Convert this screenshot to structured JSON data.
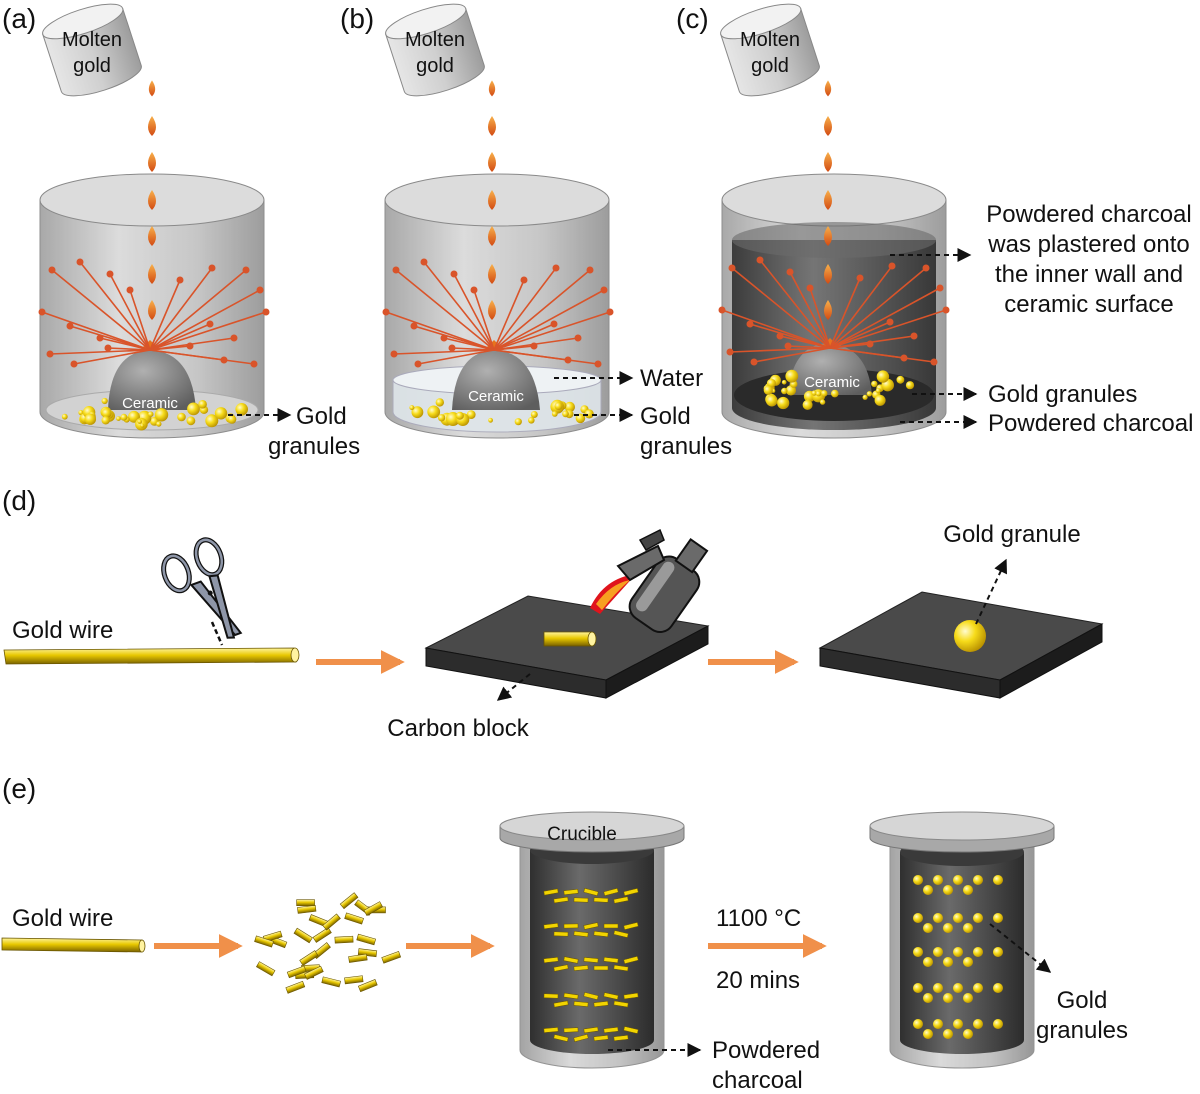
{
  "panels": {
    "a": {
      "letter": "(a)",
      "cup_label_1": "Molten",
      "cup_label_2": "gold",
      "ceramic": "Ceramic",
      "granules_1": "Gold",
      "granules_2": "granules"
    },
    "b": {
      "letter": "(b)",
      "cup_label_1": "Molten",
      "cup_label_2": "gold",
      "ceramic": "Ceramic",
      "water": "Water",
      "granules_1": "Gold",
      "granules_2": "granules"
    },
    "c": {
      "letter": "(c)",
      "cup_label_1": "Molten",
      "cup_label_2": "gold",
      "ceramic": "Ceramic",
      "charcoal_note_1": "Powdered charcoal",
      "charcoal_note_2": "was plastered onto",
      "charcoal_note_3": "the inner wall and",
      "charcoal_note_4": "ceramic surface",
      "granules": "Gold granules",
      "powdered": "Powdered charcoal"
    },
    "d": {
      "letter": "(d)",
      "wire": "Gold wire",
      "carbon": "Carbon block",
      "granule": "Gold granule"
    },
    "e": {
      "letter": "(e)",
      "wire": "Gold wire",
      "crucible": "Crucible",
      "temp": "1100 °C",
      "time": "20 mins",
      "powdered_1": "Powdered",
      "powdered_2": "charcoal",
      "granules_1": "Gold",
      "granules_2": "granules"
    }
  },
  "colors": {
    "gold": "#f2d400",
    "drop": "#e8731c",
    "spark": "#d9542a",
    "arrow": "#f0904a",
    "charcoal": "#4a4a4a",
    "glass": "#c8c8c8"
  }
}
